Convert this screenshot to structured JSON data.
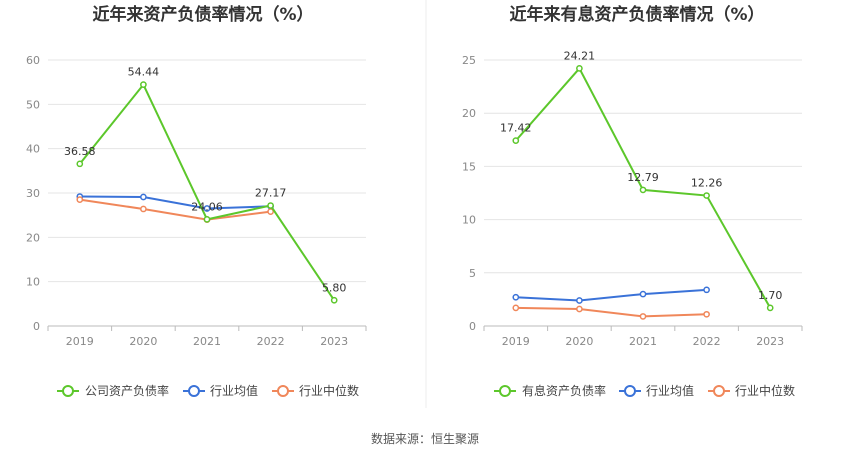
{
  "source": "数据来源：恒生聚源",
  "colors": {
    "company": "#5cc72b",
    "industry_avg": "#3a72d8",
    "industry_median": "#f0875a",
    "grid": "#e4e4e4",
    "axis": "#bbbbbb"
  },
  "chart_data": [
    {
      "type": "line",
      "title": "近年来资产负债率情况（%）",
      "categories": [
        "2019",
        "2020",
        "2021",
        "2022",
        "2023"
      ],
      "ylim": [
        0,
        60
      ],
      "yticks": [
        "0",
        "10",
        "20",
        "30",
        "40",
        "50",
        "60"
      ],
      "grid": true,
      "legend_position": "bottom",
      "series": [
        {
          "name": "公司资产负债率",
          "values": [
            36.58,
            54.44,
            24.06,
            27.17,
            5.8
          ],
          "labels": [
            "36.58",
            "54.44",
            "24.06",
            "27.17",
            "5.80"
          ]
        },
        {
          "name": "行业均值",
          "values": [
            29.2,
            29.1,
            26.5,
            27.0,
            null
          ]
        },
        {
          "name": "行业中位数",
          "values": [
            28.5,
            26.4,
            24.0,
            25.8,
            null
          ]
        }
      ]
    },
    {
      "type": "line",
      "title": "近年来有息资产负债率情况（%）",
      "categories": [
        "2019",
        "2020",
        "2021",
        "2022",
        "2023"
      ],
      "ylim": [
        0,
        25
      ],
      "yticks": [
        "0",
        "5",
        "10",
        "15",
        "20",
        "25"
      ],
      "grid": true,
      "legend_position": "bottom",
      "series": [
        {
          "name": "有息资产负债率",
          "values": [
            17.42,
            24.21,
            12.79,
            12.26,
            1.7
          ],
          "labels": [
            "17.42",
            "24.21",
            "12.79",
            "12.26",
            "1.70"
          ]
        },
        {
          "name": "行业均值",
          "values": [
            2.7,
            2.4,
            3.0,
            3.4,
            null
          ]
        },
        {
          "name": "行业中位数",
          "values": [
            1.7,
            1.6,
            0.9,
            1.1,
            null
          ]
        }
      ]
    }
  ]
}
